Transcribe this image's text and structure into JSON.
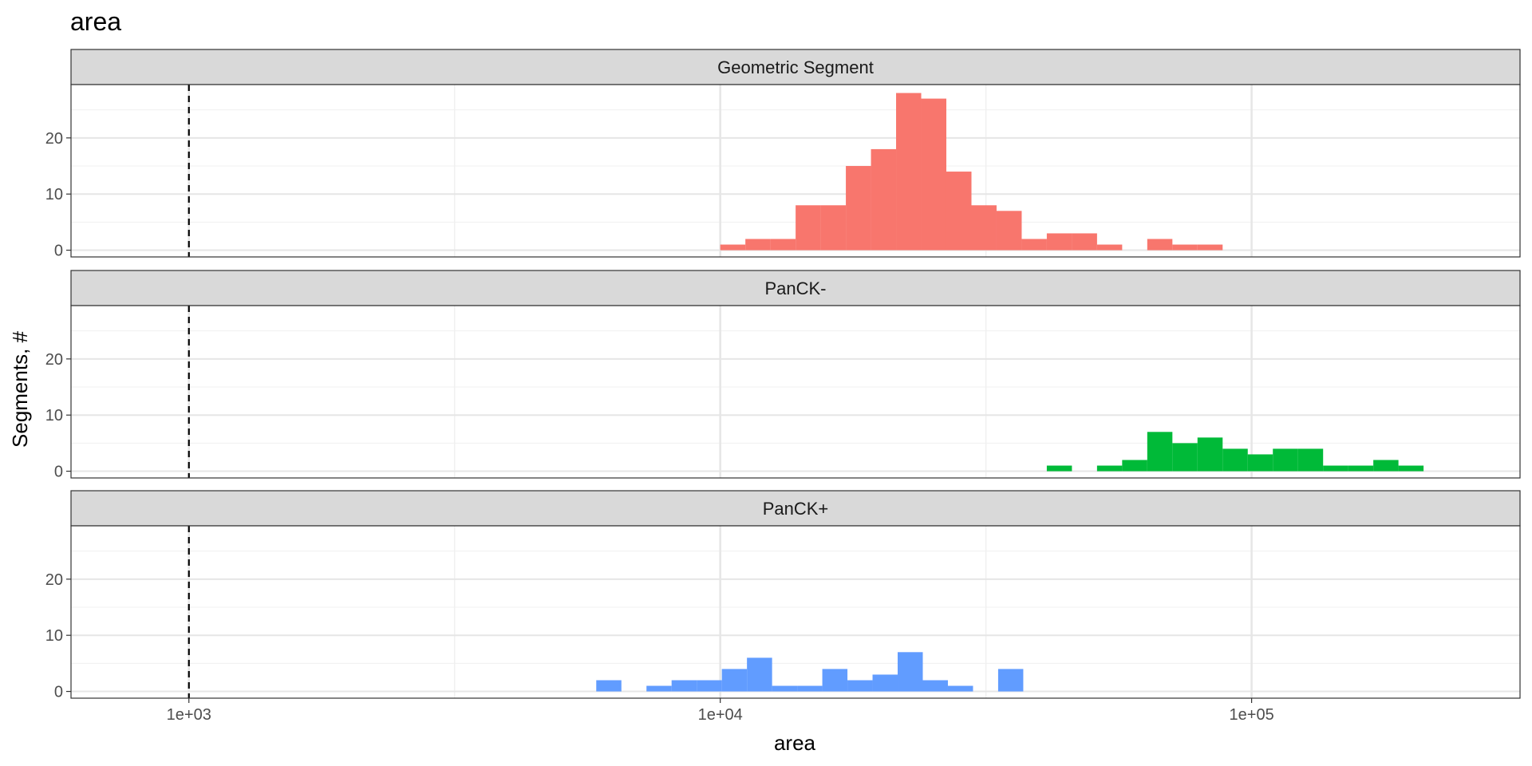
{
  "chart_data": {
    "type": "histogram",
    "title": "area",
    "xlabel": "area",
    "ylabel": "Segments, #",
    "x_scale": "log10",
    "xlim": [
      600,
      320000
    ],
    "ylim": [
      -1.2,
      29.5
    ],
    "x_ticks": [
      {
        "value": 1000,
        "label": "1e+03"
      },
      {
        "value": 10000,
        "label": "1e+04"
      },
      {
        "value": 100000,
        "label": "1e+05"
      }
    ],
    "y_ticks": [
      {
        "value": 0,
        "label": "0"
      },
      {
        "value": 10,
        "label": "10"
      },
      {
        "value": 20,
        "label": "20"
      }
    ],
    "reference_line": {
      "x": 1000,
      "style": "dashed",
      "color": "#000000"
    },
    "bin_log_width": 0.0473,
    "grid": true,
    "series": [
      {
        "name": "Geometric Segment",
        "color": "#F8766D",
        "bins": [
          {
            "x0": 10000,
            "count": 1
          },
          {
            "x0": 11150,
            "count": 2
          },
          {
            "x0": 12432,
            "count": 2
          },
          {
            "x0": 13862,
            "count": 8
          },
          {
            "x0": 15456,
            "count": 8
          },
          {
            "x0": 17233,
            "count": 15
          },
          {
            "x0": 19215,
            "count": 18
          },
          {
            "x0": 21424,
            "count": 28
          },
          {
            "x0": 23888,
            "count": 27
          },
          {
            "x0": 26635,
            "count": 14
          },
          {
            "x0": 29698,
            "count": 8
          },
          {
            "x0": 33113,
            "count": 7
          },
          {
            "x0": 36921,
            "count": 2
          },
          {
            "x0": 41166,
            "count": 3
          },
          {
            "x0": 45900,
            "count": 3
          },
          {
            "x0": 51178,
            "count": 1
          },
          {
            "x0": 63623,
            "count": 2
          },
          {
            "x0": 70939,
            "count": 1
          },
          {
            "x0": 79096,
            "count": 1
          }
        ]
      },
      {
        "name": "PanCK-",
        "color": "#00BA38",
        "bins": [
          {
            "x0": 41166,
            "count": 1
          },
          {
            "x0": 51178,
            "count": 1
          },
          {
            "x0": 57063,
            "count": 2
          },
          {
            "x0": 63623,
            "count": 7
          },
          {
            "x0": 70939,
            "count": 5
          },
          {
            "x0": 79096,
            "count": 6
          },
          {
            "x0": 88191,
            "count": 4
          },
          {
            "x0": 98332,
            "count": 3
          },
          {
            "x0": 109640,
            "count": 4
          },
          {
            "x0": 122250,
            "count": 4
          },
          {
            "x0": 136300,
            "count": 1
          },
          {
            "x0": 151970,
            "count": 1
          },
          {
            "x0": 169450,
            "count": 2
          },
          {
            "x0": 188930,
            "count": 1
          }
        ]
      },
      {
        "name": "PanCK+",
        "color": "#619CFF",
        "bins": [
          {
            "x0": 5843,
            "count": 2
          },
          {
            "x0": 7264,
            "count": 1
          },
          {
            "x0": 8099,
            "count": 2
          },
          {
            "x0": 9030,
            "count": 2
          },
          {
            "x0": 10069,
            "count": 4
          },
          {
            "x0": 11227,
            "count": 6
          },
          {
            "x0": 12518,
            "count": 1
          },
          {
            "x0": 13957,
            "count": 1
          },
          {
            "x0": 15562,
            "count": 4
          },
          {
            "x0": 17352,
            "count": 2
          },
          {
            "x0": 19347,
            "count": 3
          },
          {
            "x0": 21571,
            "count": 7
          },
          {
            "x0": 24051,
            "count": 2
          },
          {
            "x0": 26817,
            "count": 1
          },
          {
            "x0": 33340,
            "count": 4
          }
        ]
      }
    ]
  }
}
